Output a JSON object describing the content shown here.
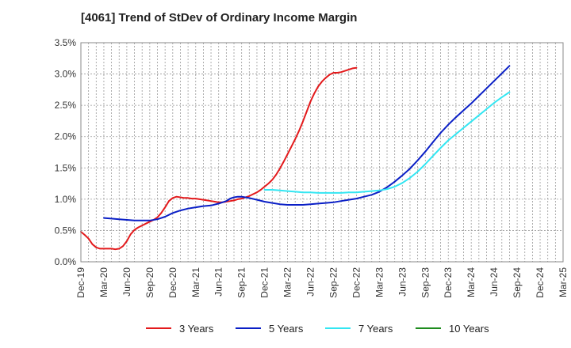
{
  "chart_data": {
    "type": "line",
    "title": "[4061]  Trend of StDev of Ordinary Income Margin",
    "xlabel": "",
    "ylabel": "",
    "x": [
      "Dec-19",
      "Mar-20",
      "Jun-20",
      "Sep-20",
      "Dec-20",
      "Mar-21",
      "Jun-21",
      "Sep-21",
      "Dec-21",
      "Mar-22",
      "Jun-22",
      "Sep-22",
      "Dec-22",
      "Mar-23",
      "Jun-23",
      "Sep-23",
      "Dec-23",
      "Mar-24",
      "Jun-24",
      "Sep-24",
      "Dec-24",
      "Mar-25"
    ],
    "y_ticks": [
      "0.0%",
      "0.5%",
      "1.0%",
      "1.5%",
      "2.0%",
      "2.5%",
      "3.0%",
      "3.5%"
    ],
    "ylim": [
      0,
      3.5
    ],
    "y_unit": "%",
    "grid": true,
    "legend_position": "bottom",
    "series": [
      {
        "name": "3 Years",
        "color": "#e31a1c",
        "points": [
          [
            0,
            0.48
          ],
          [
            0.5,
            0.43
          ],
          [
            1,
            0.37
          ],
          [
            1.5,
            0.28
          ],
          [
            2,
            0.23
          ],
          [
            2.5,
            0.21
          ],
          [
            3,
            0.21
          ],
          [
            3.5,
            0.21
          ],
          [
            4,
            0.21
          ],
          [
            4.5,
            0.2
          ],
          [
            5,
            0.21
          ],
          [
            5.5,
            0.25
          ],
          [
            6,
            0.33
          ],
          [
            6.5,
            0.44
          ],
          [
            7,
            0.51
          ],
          [
            7.5,
            0.55
          ],
          [
            8,
            0.58
          ],
          [
            8.5,
            0.61
          ],
          [
            9,
            0.64
          ],
          [
            9.5,
            0.67
          ],
          [
            10,
            0.71
          ],
          [
            10.5,
            0.78
          ],
          [
            11,
            0.87
          ],
          [
            11.5,
            0.97
          ],
          [
            12,
            1.02
          ],
          [
            12.5,
            1.04
          ],
          [
            13,
            1.03
          ],
          [
            13.5,
            1.02
          ],
          [
            14,
            1.02
          ],
          [
            14.5,
            1.01
          ],
          [
            15,
            1.01
          ],
          [
            15.5,
            1.0
          ],
          [
            16,
            0.99
          ],
          [
            16.5,
            0.98
          ],
          [
            17,
            0.97
          ],
          [
            17.5,
            0.96
          ],
          [
            18,
            0.95
          ],
          [
            18.5,
            0.95
          ],
          [
            19,
            0.96
          ],
          [
            19.5,
            0.97
          ],
          [
            20,
            0.98
          ],
          [
            20.5,
            1.0
          ],
          [
            21,
            1.01
          ],
          [
            21.5,
            1.03
          ],
          [
            22,
            1.05
          ],
          [
            22.5,
            1.08
          ],
          [
            23,
            1.11
          ],
          [
            23.5,
            1.15
          ],
          [
            24,
            1.2
          ],
          [
            24.5,
            1.25
          ],
          [
            25,
            1.31
          ],
          [
            25.5,
            1.39
          ],
          [
            26,
            1.49
          ],
          [
            26.5,
            1.6
          ],
          [
            27,
            1.72
          ],
          [
            27.5,
            1.84
          ],
          [
            28,
            1.96
          ],
          [
            28.5,
            2.09
          ],
          [
            29,
            2.24
          ],
          [
            29.5,
            2.4
          ],
          [
            30,
            2.56
          ],
          [
            30.5,
            2.69
          ],
          [
            31,
            2.8
          ],
          [
            31.5,
            2.88
          ],
          [
            32,
            2.94
          ],
          [
            32.5,
            2.99
          ],
          [
            33,
            3.02
          ],
          [
            33.5,
            3.02
          ],
          [
            34,
            3.03
          ],
          [
            34.5,
            3.05
          ],
          [
            35,
            3.07
          ],
          [
            35.5,
            3.09
          ],
          [
            36,
            3.1
          ]
        ]
      },
      {
        "name": "5 Years",
        "color": "#0a1fc6",
        "points": [
          [
            3,
            0.7
          ],
          [
            4,
            0.69
          ],
          [
            5,
            0.68
          ],
          [
            6,
            0.67
          ],
          [
            7,
            0.66
          ],
          [
            8,
            0.66
          ],
          [
            9,
            0.66
          ],
          [
            10,
            0.68
          ],
          [
            11,
            0.72
          ],
          [
            12,
            0.78
          ],
          [
            13,
            0.82
          ],
          [
            14,
            0.85
          ],
          [
            15,
            0.87
          ],
          [
            16,
            0.89
          ],
          [
            17,
            0.9
          ],
          [
            18,
            0.93
          ],
          [
            19,
            0.97
          ],
          [
            19.5,
            1.01
          ],
          [
            20,
            1.03
          ],
          [
            20.5,
            1.04
          ],
          [
            21,
            1.04
          ],
          [
            21.5,
            1.03
          ],
          [
            22,
            1.02
          ],
          [
            23,
            0.99
          ],
          [
            24,
            0.96
          ],
          [
            25,
            0.94
          ],
          [
            26,
            0.92
          ],
          [
            27,
            0.91
          ],
          [
            28,
            0.91
          ],
          [
            29,
            0.91
          ],
          [
            30,
            0.92
          ],
          [
            31,
            0.93
          ],
          [
            32,
            0.94
          ],
          [
            33,
            0.95
          ],
          [
            34,
            0.97
          ],
          [
            35,
            0.99
          ],
          [
            36,
            1.01
          ],
          [
            37,
            1.04
          ],
          [
            38,
            1.07
          ],
          [
            39,
            1.12
          ],
          [
            40,
            1.19
          ],
          [
            41,
            1.28
          ],
          [
            42,
            1.38
          ],
          [
            43,
            1.49
          ],
          [
            44,
            1.62
          ],
          [
            45,
            1.76
          ],
          [
            46,
            1.91
          ],
          [
            47,
            2.06
          ],
          [
            48,
            2.19
          ],
          [
            49,
            2.31
          ],
          [
            50,
            2.42
          ],
          [
            51,
            2.53
          ],
          [
            52,
            2.65
          ],
          [
            53,
            2.77
          ],
          [
            54,
            2.89
          ],
          [
            55,
            3.01
          ],
          [
            56,
            3.13
          ]
        ]
      },
      {
        "name": "7 Years",
        "color": "#33e6f2",
        "points": [
          [
            24,
            1.15
          ],
          [
            25,
            1.15
          ],
          [
            26,
            1.14
          ],
          [
            27,
            1.13
          ],
          [
            28,
            1.12
          ],
          [
            29,
            1.11
          ],
          [
            30,
            1.11
          ],
          [
            31,
            1.1
          ],
          [
            32,
            1.1
          ],
          [
            33,
            1.1
          ],
          [
            34,
            1.1
          ],
          [
            35,
            1.11
          ],
          [
            36,
            1.11
          ],
          [
            37,
            1.12
          ],
          [
            38,
            1.13
          ],
          [
            39,
            1.14
          ],
          [
            40,
            1.16
          ],
          [
            41,
            1.2
          ],
          [
            42,
            1.26
          ],
          [
            43,
            1.34
          ],
          [
            44,
            1.44
          ],
          [
            45,
            1.56
          ],
          [
            46,
            1.69
          ],
          [
            47,
            1.82
          ],
          [
            48,
            1.94
          ],
          [
            49,
            2.04
          ],
          [
            50,
            2.14
          ],
          [
            51,
            2.24
          ],
          [
            52,
            2.34
          ],
          [
            53,
            2.44
          ],
          [
            54,
            2.54
          ],
          [
            55,
            2.63
          ],
          [
            56,
            2.71
          ]
        ]
      },
      {
        "name": "10 Years",
        "color": "#1e8c1e",
        "points": []
      }
    ]
  }
}
